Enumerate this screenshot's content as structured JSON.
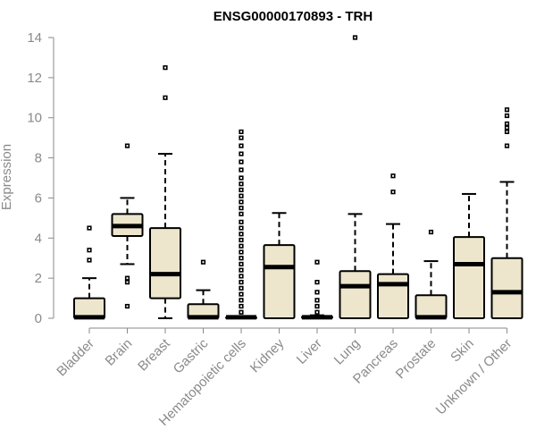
{
  "chart_data": {
    "type": "box",
    "title": "ENSG00000170893 - TRH",
    "xlabel": "",
    "ylabel": "Expression",
    "ylim": [
      0,
      14
    ],
    "yticks": [
      0,
      2,
      4,
      6,
      8,
      10,
      12,
      14
    ],
    "grid": false,
    "colors": {
      "box_fill": "#ede6cd",
      "box_stroke": "#000000",
      "axis": "#8a8a8a"
    },
    "categories": [
      "Bladder",
      "Brain",
      "Breast",
      "Gastric",
      "Hematopoietic cells",
      "Kidney",
      "Liver",
      "Lung",
      "Pancreas",
      "Prostate",
      "Skin",
      "Unknown / Other"
    ],
    "boxes": [
      {
        "category": "Bladder",
        "min": 0,
        "q1": 0,
        "median": 0.05,
        "q3": 1.0,
        "max": 2.0,
        "outliers": [
          2.9,
          3.4,
          4.5
        ]
      },
      {
        "category": "Brain",
        "min": 2.7,
        "q1": 4.1,
        "median": 4.6,
        "q3": 5.2,
        "max": 6.0,
        "outliers": [
          0.6,
          1.8,
          2.0,
          8.6
        ]
      },
      {
        "category": "Breast",
        "min": 0,
        "q1": 1.0,
        "median": 2.2,
        "q3": 4.5,
        "max": 8.2,
        "outliers": [
          11.0,
          12.5
        ]
      },
      {
        "category": "Gastric",
        "min": 0,
        "q1": 0,
        "median": 0.05,
        "q3": 0.7,
        "max": 1.4,
        "outliers": [
          2.8
        ]
      },
      {
        "category": "Hematopoietic cells",
        "min": 0,
        "q1": 0,
        "median": 0.05,
        "q3": 0.05,
        "max": 0.1,
        "outliers": [
          0.3,
          0.6,
          0.9,
          1.2,
          1.5,
          1.8,
          2.1,
          2.4,
          2.7,
          3.0,
          3.3,
          3.6,
          3.9,
          4.2,
          4.5,
          4.8,
          5.2,
          5.5,
          5.8,
          6.1,
          6.4,
          6.7,
          7.0,
          7.4,
          7.8,
          8.2,
          8.6,
          9.0,
          9.3
        ]
      },
      {
        "category": "Kidney",
        "min": 0,
        "q1": 0,
        "median": 2.55,
        "q3": 3.65,
        "max": 5.25,
        "outliers": []
      },
      {
        "category": "Liver",
        "min": 0,
        "q1": 0,
        "median": 0.05,
        "q3": 0.1,
        "max": 0.15,
        "outliers": [
          0.3,
          0.6,
          0.9,
          1.3,
          1.8,
          2.8
        ]
      },
      {
        "category": "Lung",
        "min": 0,
        "q1": 0,
        "median": 1.6,
        "q3": 2.35,
        "max": 5.2,
        "outliers": [
          14.0
        ]
      },
      {
        "category": "Pancreas",
        "min": 0,
        "q1": 0,
        "median": 1.7,
        "q3": 2.2,
        "max": 4.7,
        "outliers": [
          6.3,
          7.1
        ]
      },
      {
        "category": "Prostate",
        "min": 0,
        "q1": 0,
        "median": 0.05,
        "q3": 1.15,
        "max": 2.85,
        "outliers": [
          4.3
        ]
      },
      {
        "category": "Skin",
        "min": 0,
        "q1": 0,
        "median": 2.7,
        "q3": 4.05,
        "max": 6.2,
        "outliers": []
      },
      {
        "category": "Unknown / Other",
        "min": 0,
        "q1": 0,
        "median": 1.3,
        "q3": 3.0,
        "max": 6.8,
        "outliers": [
          8.6,
          9.3,
          9.5,
          9.7,
          10.1,
          10.4
        ]
      }
    ]
  }
}
